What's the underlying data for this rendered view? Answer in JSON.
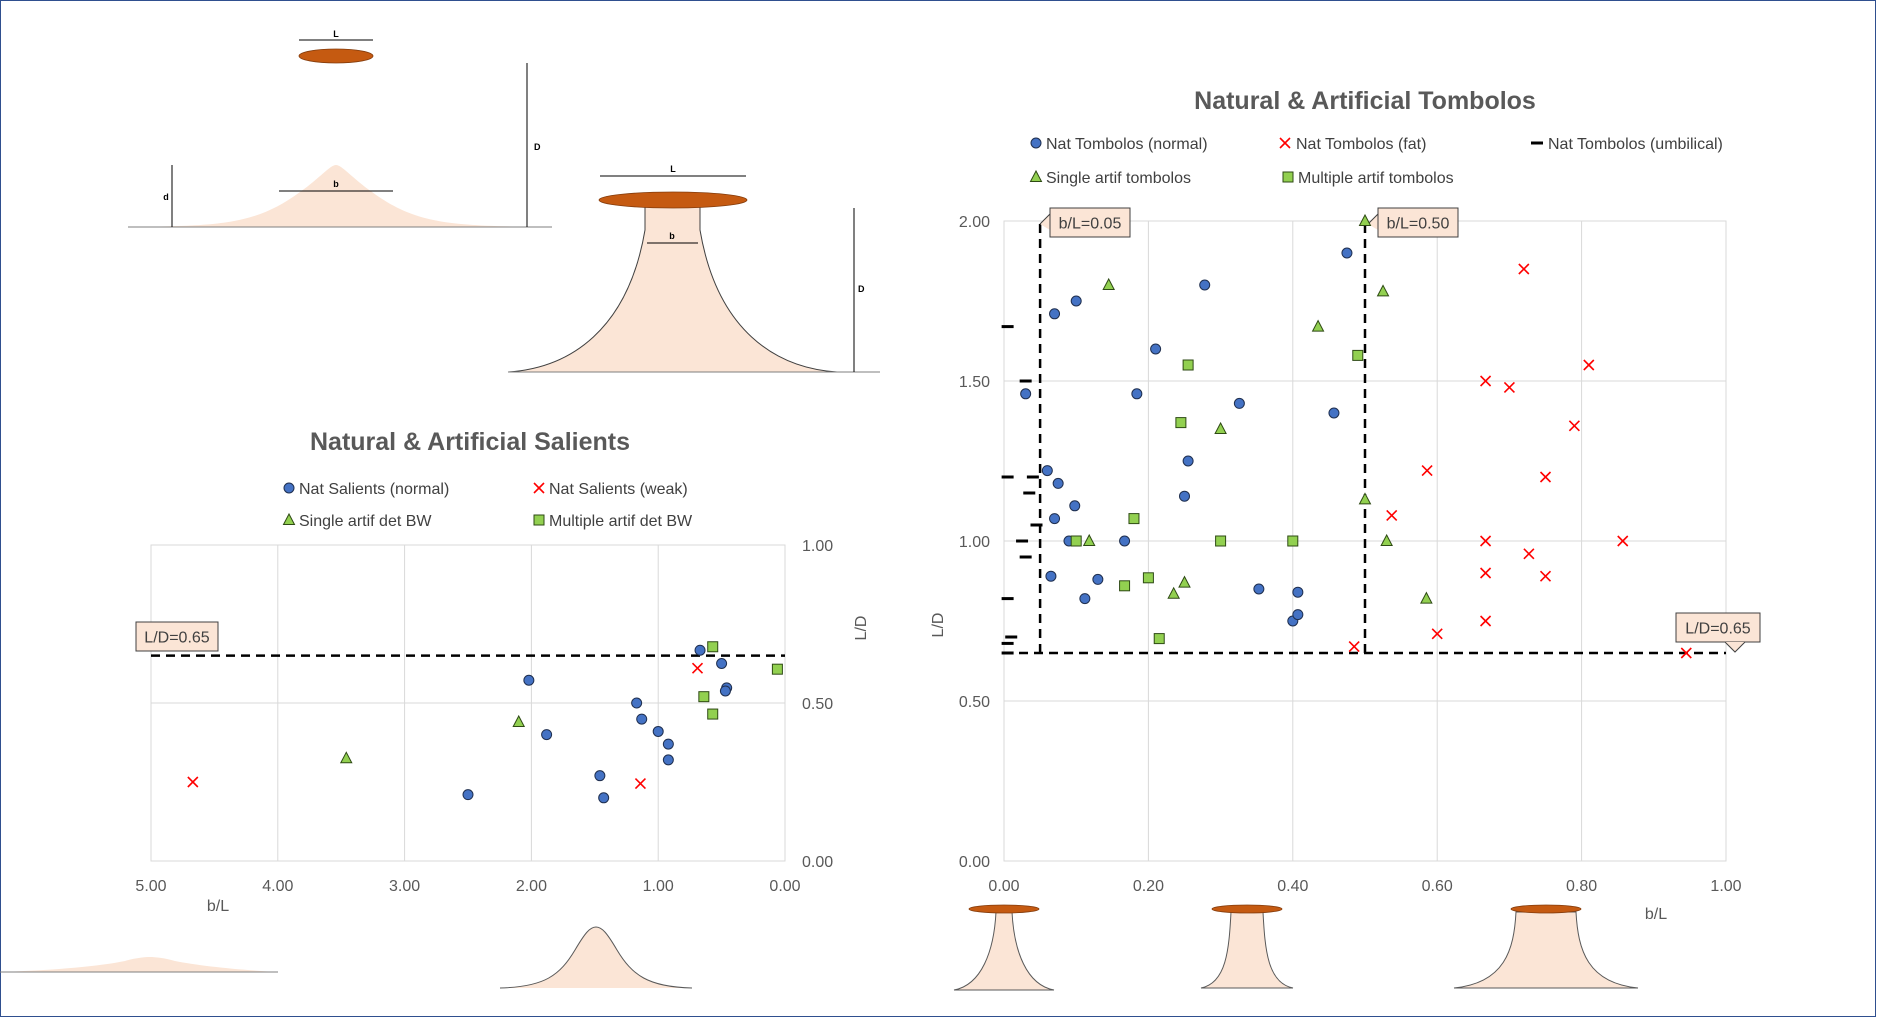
{
  "colors": {
    "blue": "#4472c4",
    "red": "#ff0000",
    "green": "#92d050",
    "sand": "#fbe5d6",
    "breakwater": "#c55a11",
    "grid": "#d9d9d9",
    "callout": "#fbe5d6"
  },
  "diagram": {
    "salient": {
      "L": "L",
      "D": "D",
      "d": "d",
      "b": "b"
    },
    "tombolo": {
      "L": "L",
      "D": "D",
      "b": "b"
    }
  },
  "chart_data": [
    {
      "type": "scatter",
      "title": "Natural & Artificial Salients",
      "xlabel": "b/L",
      "ylabel": "L/D",
      "xlim": [
        5.0,
        0.0
      ],
      "x_reversed": true,
      "ylim": [
        0.0,
        1.0
      ],
      "x_ticks": [
        "5.00",
        "4.00",
        "3.00",
        "2.00",
        "1.00",
        "0.00"
      ],
      "y_ticks": [
        "0.00",
        "0.50",
        "1.00"
      ],
      "y_axis_side": "right",
      "grid": true,
      "legend_position": "top",
      "series": [
        {
          "name": "Nat Salients (normal)",
          "marker": "circle",
          "points": [
            [
              0.67,
              0.667
            ],
            [
              2.02,
              0.572
            ],
            [
              0.5,
              0.625
            ],
            [
              0.46,
              0.548
            ],
            [
              0.47,
              0.538
            ],
            [
              1.17,
              0.5
            ],
            [
              1.13,
              0.449
            ],
            [
              1.88,
              0.4
            ],
            [
              1.0,
              0.41
            ],
            [
              0.92,
              0.37
            ],
            [
              0.92,
              0.32
            ],
            [
              1.46,
              0.27
            ],
            [
              1.43,
              0.2
            ],
            [
              2.5,
              0.21
            ]
          ]
        },
        {
          "name": "Nat Salients (weak)",
          "marker": "x",
          "points": [
            [
              4.67,
              0.25
            ],
            [
              0.69,
              0.61
            ],
            [
              1.14,
              0.245
            ]
          ]
        },
        {
          "name": "Single artif det BW",
          "marker": "triangle",
          "points": [
            [
              2.1,
              0.44
            ],
            [
              3.46,
              0.325
            ]
          ]
        },
        {
          "name": "Multiple artif det BW",
          "marker": "square",
          "points": [
            [
              0.57,
              0.678
            ],
            [
              0.06,
              0.607
            ],
            [
              0.64,
              0.52
            ],
            [
              0.57,
              0.465
            ]
          ]
        }
      ],
      "reference_lines": [
        {
          "axis": "y",
          "value": 0.65,
          "label": "L/D=0.65"
        }
      ]
    },
    {
      "type": "scatter",
      "title": "Natural & Artificial Tombolos",
      "xlabel": "b/L",
      "ylabel": "L/D",
      "xlim": [
        0.0,
        1.0
      ],
      "ylim": [
        0.0,
        2.0
      ],
      "x_ticks": [
        "0.00",
        "0.20",
        "0.40",
        "0.60",
        "0.80",
        "1.00"
      ],
      "y_ticks": [
        "0.00",
        "0.50",
        "1.00",
        "1.50",
        "2.00"
      ],
      "grid": true,
      "legend_position": "top",
      "series": [
        {
          "name": "Nat Tombolos (normal)",
          "marker": "circle",
          "points": [
            [
              0.475,
              1.9
            ],
            [
              0.278,
              1.8
            ],
            [
              0.1,
              1.75
            ],
            [
              0.07,
              1.71
            ],
            [
              0.21,
              1.6
            ],
            [
              0.03,
              1.46
            ],
            [
              0.184,
              1.46
            ],
            [
              0.326,
              1.43
            ],
            [
              0.457,
              1.4
            ],
            [
              0.255,
              1.25
            ],
            [
              0.06,
              1.22
            ],
            [
              0.075,
              1.18
            ],
            [
              0.25,
              1.14
            ],
            [
              0.098,
              1.11
            ],
            [
              0.07,
              1.07
            ],
            [
              0.09,
              1.0
            ],
            [
              0.167,
              1.0
            ],
            [
              0.065,
              0.89
            ],
            [
              0.13,
              0.88
            ],
            [
              0.112,
              0.82
            ],
            [
              0.353,
              0.85
            ],
            [
              0.407,
              0.84
            ],
            [
              0.4,
              0.75
            ],
            [
              0.407,
              0.77
            ]
          ]
        },
        {
          "name": "Nat Tombolos (fat)",
          "marker": "x",
          "points": [
            [
              0.72,
              1.85
            ],
            [
              0.667,
              1.5
            ],
            [
              0.7,
              1.48
            ],
            [
              0.81,
              1.55
            ],
            [
              0.79,
              1.36
            ],
            [
              0.586,
              1.22
            ],
            [
              0.75,
              1.2
            ],
            [
              0.537,
              1.08
            ],
            [
              0.667,
              1.0
            ],
            [
              0.857,
              1.0
            ],
            [
              0.727,
              0.96
            ],
            [
              0.667,
              0.9
            ],
            [
              0.75,
              0.89
            ],
            [
              0.667,
              0.75
            ],
            [
              0.6,
              0.71
            ],
            [
              0.485,
              0.67
            ],
            [
              0.945,
              0.65
            ]
          ]
        },
        {
          "name": "Nat Tombolos (umbilical)",
          "marker": "dash",
          "points": [
            [
              0.005,
              1.67
            ],
            [
              0.03,
              1.5
            ],
            [
              0.005,
              1.2
            ],
            [
              0.04,
              1.2
            ],
            [
              0.035,
              1.15
            ],
            [
              0.045,
              1.05
            ],
            [
              0.025,
              1.0
            ],
            [
              0.03,
              0.95
            ],
            [
              0.005,
              0.82
            ],
            [
              0.01,
              0.7
            ],
            [
              0.005,
              0.68
            ],
            [
              0.005,
              0.65
            ]
          ]
        },
        {
          "name": "Single artif tombolos",
          "marker": "triangle",
          "points": [
            [
              0.5,
              2.0
            ],
            [
              0.145,
              1.8
            ],
            [
              0.525,
              1.78
            ],
            [
              0.435,
              1.67
            ],
            [
              0.3,
              1.35
            ],
            [
              0.5,
              1.13
            ],
            [
              0.118,
              1.0
            ],
            [
              0.53,
              1.0
            ],
            [
              0.25,
              0.87
            ],
            [
              0.235,
              0.835
            ],
            [
              0.585,
              0.82
            ]
          ]
        },
        {
          "name": "Multiple artif tombolos",
          "marker": "square",
          "points": [
            [
              0.49,
              1.58
            ],
            [
              0.255,
              1.55
            ],
            [
              0.245,
              1.37
            ],
            [
              0.18,
              1.07
            ],
            [
              0.1,
              1.0
            ],
            [
              0.3,
              1.0
            ],
            [
              0.4,
              1.0
            ],
            [
              0.2,
              0.885
            ],
            [
              0.167,
              0.86
            ],
            [
              0.215,
              0.695
            ]
          ]
        }
      ],
      "reference_lines": [
        {
          "axis": "x",
          "value": 0.05,
          "label": "b/L=0.05"
        },
        {
          "axis": "x",
          "value": 0.5,
          "label": "b/L=0.50"
        },
        {
          "axis": "y",
          "value": 0.65,
          "label": "L/D=0.65"
        }
      ]
    }
  ]
}
